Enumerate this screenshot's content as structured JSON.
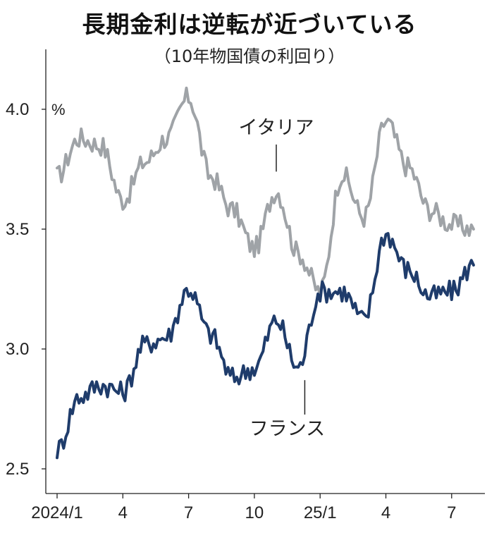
{
  "header": {
    "title": "長期金利は逆転が近づいている",
    "subtitle": "（10年物国債の利回り）"
  },
  "chart_data": {
    "type": "line",
    "title": "長期金利は逆転が近づいている",
    "subtitle": "（10年物国債の利回り）",
    "ylabel": "%",
    "ylim": [
      2.45,
      4.2
    ],
    "yticks": [
      2.5,
      3.0,
      3.5,
      4.0
    ],
    "ytick_labels": [
      "2.5",
      "3.0",
      "3.5",
      "4.0"
    ],
    "xticks": [
      "2024/1",
      "4",
      "7",
      "10",
      "25/1",
      "4",
      "7"
    ],
    "x": [
      "2024/01",
      "2024/02",
      "2024/03",
      "2024/04",
      "2024/05",
      "2024/06",
      "2024/07",
      "2024/08",
      "2024/09",
      "2024/10",
      "2024/11",
      "2024/12",
      "2025/01",
      "2025/02",
      "2025/03",
      "2025/04",
      "2025/05",
      "2025/06",
      "2025/07",
      "2025/08"
    ],
    "grid": false,
    "legend": "none",
    "series": [
      {
        "name": "イタリア",
        "color": "#9fa3a7",
        "values": [
          3.72,
          3.88,
          3.85,
          3.62,
          3.78,
          3.88,
          4.05,
          3.72,
          3.58,
          3.42,
          3.66,
          3.4,
          3.24,
          3.73,
          3.55,
          3.95,
          3.76,
          3.58,
          3.52,
          3.5
        ]
      },
      {
        "name": "フランス",
        "color": "#1f3c6b",
        "values": [
          2.58,
          2.8,
          2.85,
          2.82,
          3.02,
          3.05,
          3.25,
          3.06,
          2.88,
          2.92,
          3.12,
          2.92,
          3.24,
          3.24,
          3.12,
          3.48,
          3.33,
          3.22,
          3.24,
          3.35
        ]
      }
    ],
    "annotations": [
      {
        "series": "イタリア",
        "text": "イタリア",
        "at": "2024/11"
      },
      {
        "series": "フランス",
        "text": "フランス",
        "at": "2024/12"
      }
    ]
  }
}
